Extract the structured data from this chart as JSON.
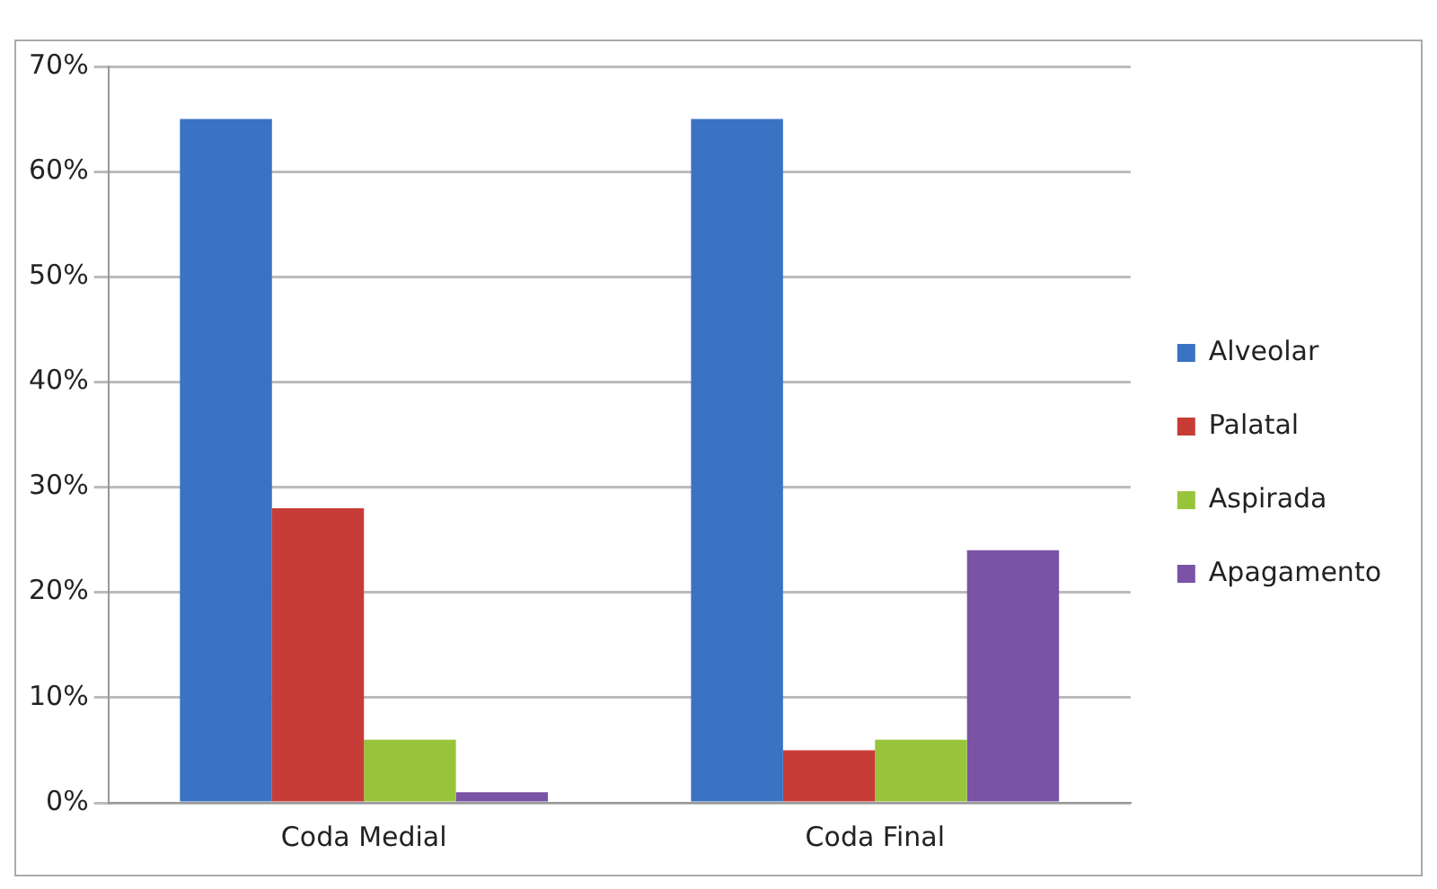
{
  "chart_data": {
    "type": "bar",
    "categories": [
      "Coda Medial",
      "Coda Final"
    ],
    "series": [
      {
        "name": "Alveolar",
        "color": "#3a72c4",
        "values": [
          65,
          65
        ]
      },
      {
        "name": "Palatal",
        "color": "#c83c38",
        "values": [
          28,
          5
        ]
      },
      {
        "name": "Aspirada",
        "color": "#98c43c",
        "values": [
          6,
          6
        ]
      },
      {
        "name": "Apagamento",
        "color": "#7a52a6",
        "values": [
          1,
          24
        ]
      }
    ],
    "ylim": [
      0,
      70
    ],
    "yticks": [
      {
        "value": 0,
        "label": "0%"
      },
      {
        "value": 10,
        "label": "10%"
      },
      {
        "value": 20,
        "label": "20%"
      },
      {
        "value": 30,
        "label": "30%"
      },
      {
        "value": 40,
        "label": "40%"
      },
      {
        "value": 50,
        "label": "50%"
      },
      {
        "value": 60,
        "label": "60%"
      },
      {
        "value": 70,
        "label": "70%"
      }
    ],
    "grid": "y",
    "legend": "right"
  }
}
